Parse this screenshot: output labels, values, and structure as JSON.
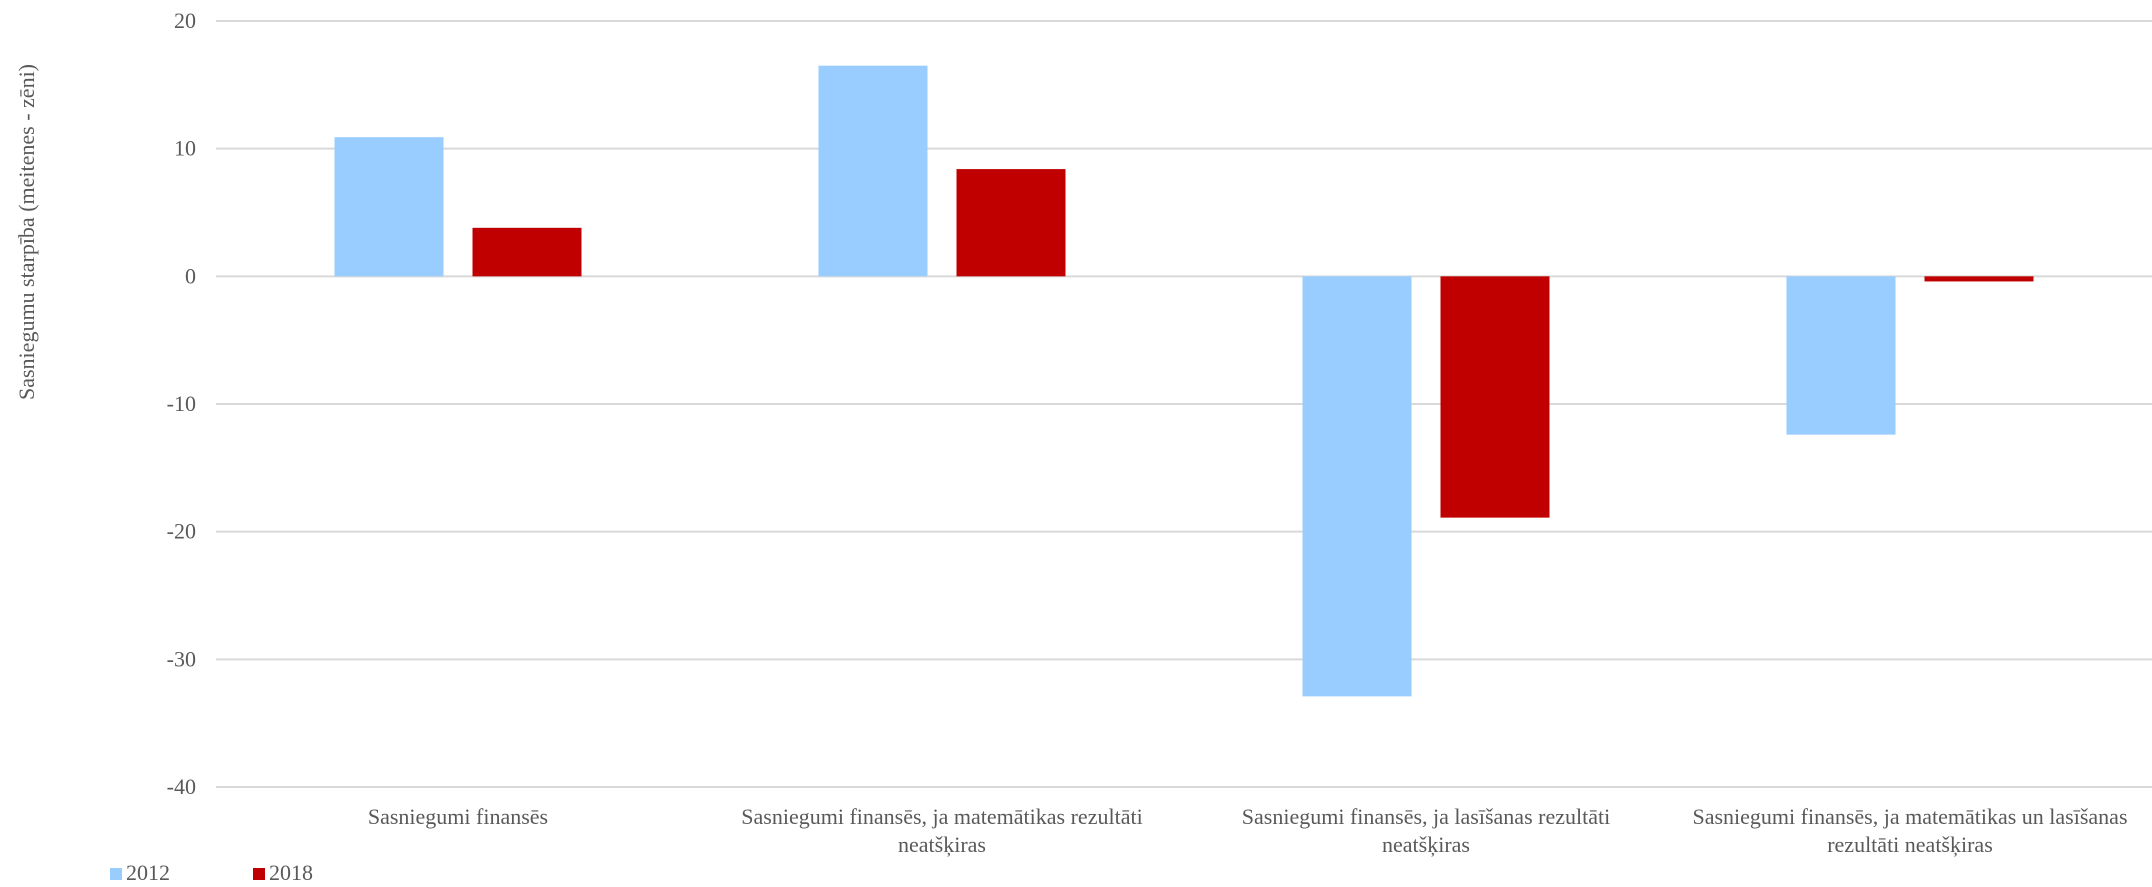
{
  "chart_data": {
    "type": "bar",
    "ylabel": "Sasniegumu starpība (meitenes - zēni)",
    "ylim": [
      -40,
      20
    ],
    "yticks": [
      20,
      10,
      0,
      -10,
      -20,
      -30,
      -40
    ],
    "grid": true,
    "legend_position": "bottom-left",
    "categories": [
      [
        "Sasniegumi finansēs"
      ],
      [
        "Sasniegumi finansēs, ja matemātikas rezultāti",
        "neatšķiras"
      ],
      [
        "Sasniegumi finansēs, ja lasīšanas rezultāti",
        "neatšķiras"
      ],
      [
        "Sasniegumi finansēs, ja matemātikas un lasīšanas",
        "rezultāti neatšķiras"
      ]
    ],
    "series": [
      {
        "name": "2012",
        "color": "#99ccff",
        "values": [
          10.9,
          16.5,
          -32.9,
          -12.4
        ]
      },
      {
        "name": "2018",
        "color": "#c00000",
        "values": [
          3.8,
          8.4,
          -18.9,
          -0.4
        ]
      }
    ]
  }
}
